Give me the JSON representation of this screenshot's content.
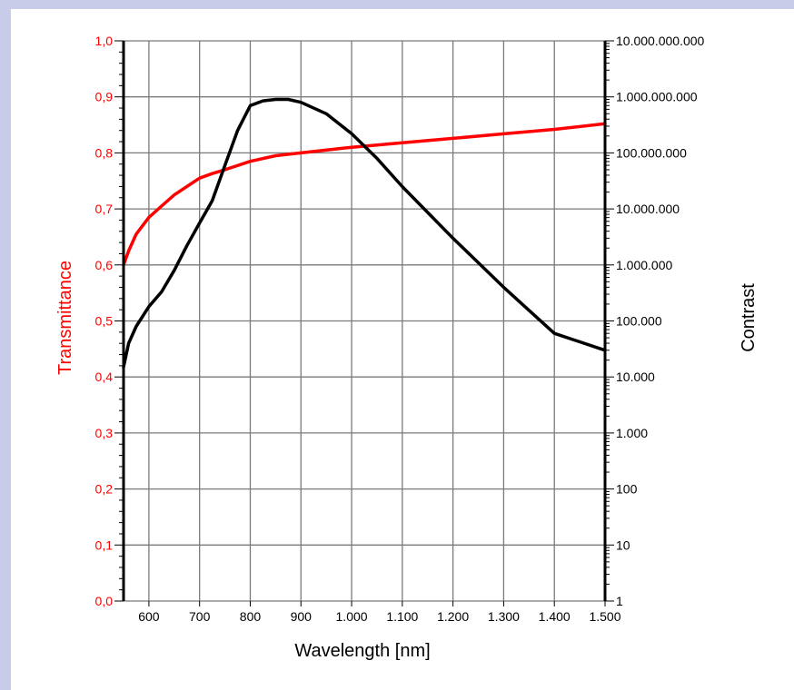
{
  "chart_data": {
    "type": "line",
    "title": "",
    "xlabel": "Wavelength [nm]",
    "ylabel_left": "Transmittance",
    "ylabel_right": "Contrast",
    "xlim": [
      550,
      1500
    ],
    "ylim_left": [
      0,
      1
    ],
    "ylim_right": [
      1,
      10000000000
    ],
    "right_axis_scale": "log",
    "grid": true,
    "x_tick_labels": [
      "600",
      "700",
      "800",
      "900",
      "1.000",
      "1.100",
      "1.200",
      "1.300",
      "1.400",
      "1.500"
    ],
    "x_ticks": [
      600,
      700,
      800,
      900,
      1000,
      1100,
      1200,
      1300,
      1400,
      1500
    ],
    "left_tick_labels": [
      "0,0",
      "0,1",
      "0,2",
      "0,3",
      "0,4",
      "0,5",
      "0,6",
      "0,7",
      "0,8",
      "0,9",
      "1,0"
    ],
    "left_ticks": [
      0,
      0.1,
      0.2,
      0.3,
      0.4,
      0.5,
      0.6,
      0.7,
      0.8,
      0.9,
      1.0
    ],
    "right_tick_labels": [
      "1",
      "10",
      "100",
      "1.000",
      "10.000",
      "100.000",
      "1.000.000",
      "10.000.000",
      "100.000.000",
      "1.000.000.000",
      "10.000.000.000"
    ],
    "right_ticks": [
      1,
      10,
      100,
      1000,
      10000,
      100000,
      1000000,
      10000000,
      100000000,
      1000000000,
      10000000000
    ],
    "series": [
      {
        "name": "Transmittance",
        "axis": "left",
        "color": "#ff0000",
        "x": [
          550,
          560,
          575,
          600,
          625,
          650,
          675,
          700,
          725,
          750,
          800,
          850,
          900,
          1000,
          1100,
          1200,
          1300,
          1400,
          1500
        ],
        "y": [
          0.6,
          0.625,
          0.655,
          0.685,
          0.705,
          0.725,
          0.74,
          0.755,
          0.763,
          0.77,
          0.785,
          0.795,
          0.8,
          0.81,
          0.818,
          0.826,
          0.834,
          0.842,
          0.852
        ]
      },
      {
        "name": "Contrast",
        "axis": "right",
        "color": "#000000",
        "x": [
          550,
          560,
          575,
          600,
          625,
          650,
          675,
          700,
          725,
          750,
          775,
          800,
          825,
          850,
          875,
          900,
          950,
          1000,
          1050,
          1100,
          1200,
          1300,
          1400,
          1500
        ],
        "y": [
          15000,
          40000,
          80000,
          180000,
          330000,
          800000,
          2200000,
          5600000,
          14000000,
          60000000,
          250000000,
          700000000,
          850000000,
          900000000,
          900000000,
          800000000,
          500000000,
          220000000,
          80000000,
          25000000,
          3000000,
          400000,
          60000,
          30000
        ]
      }
    ]
  }
}
